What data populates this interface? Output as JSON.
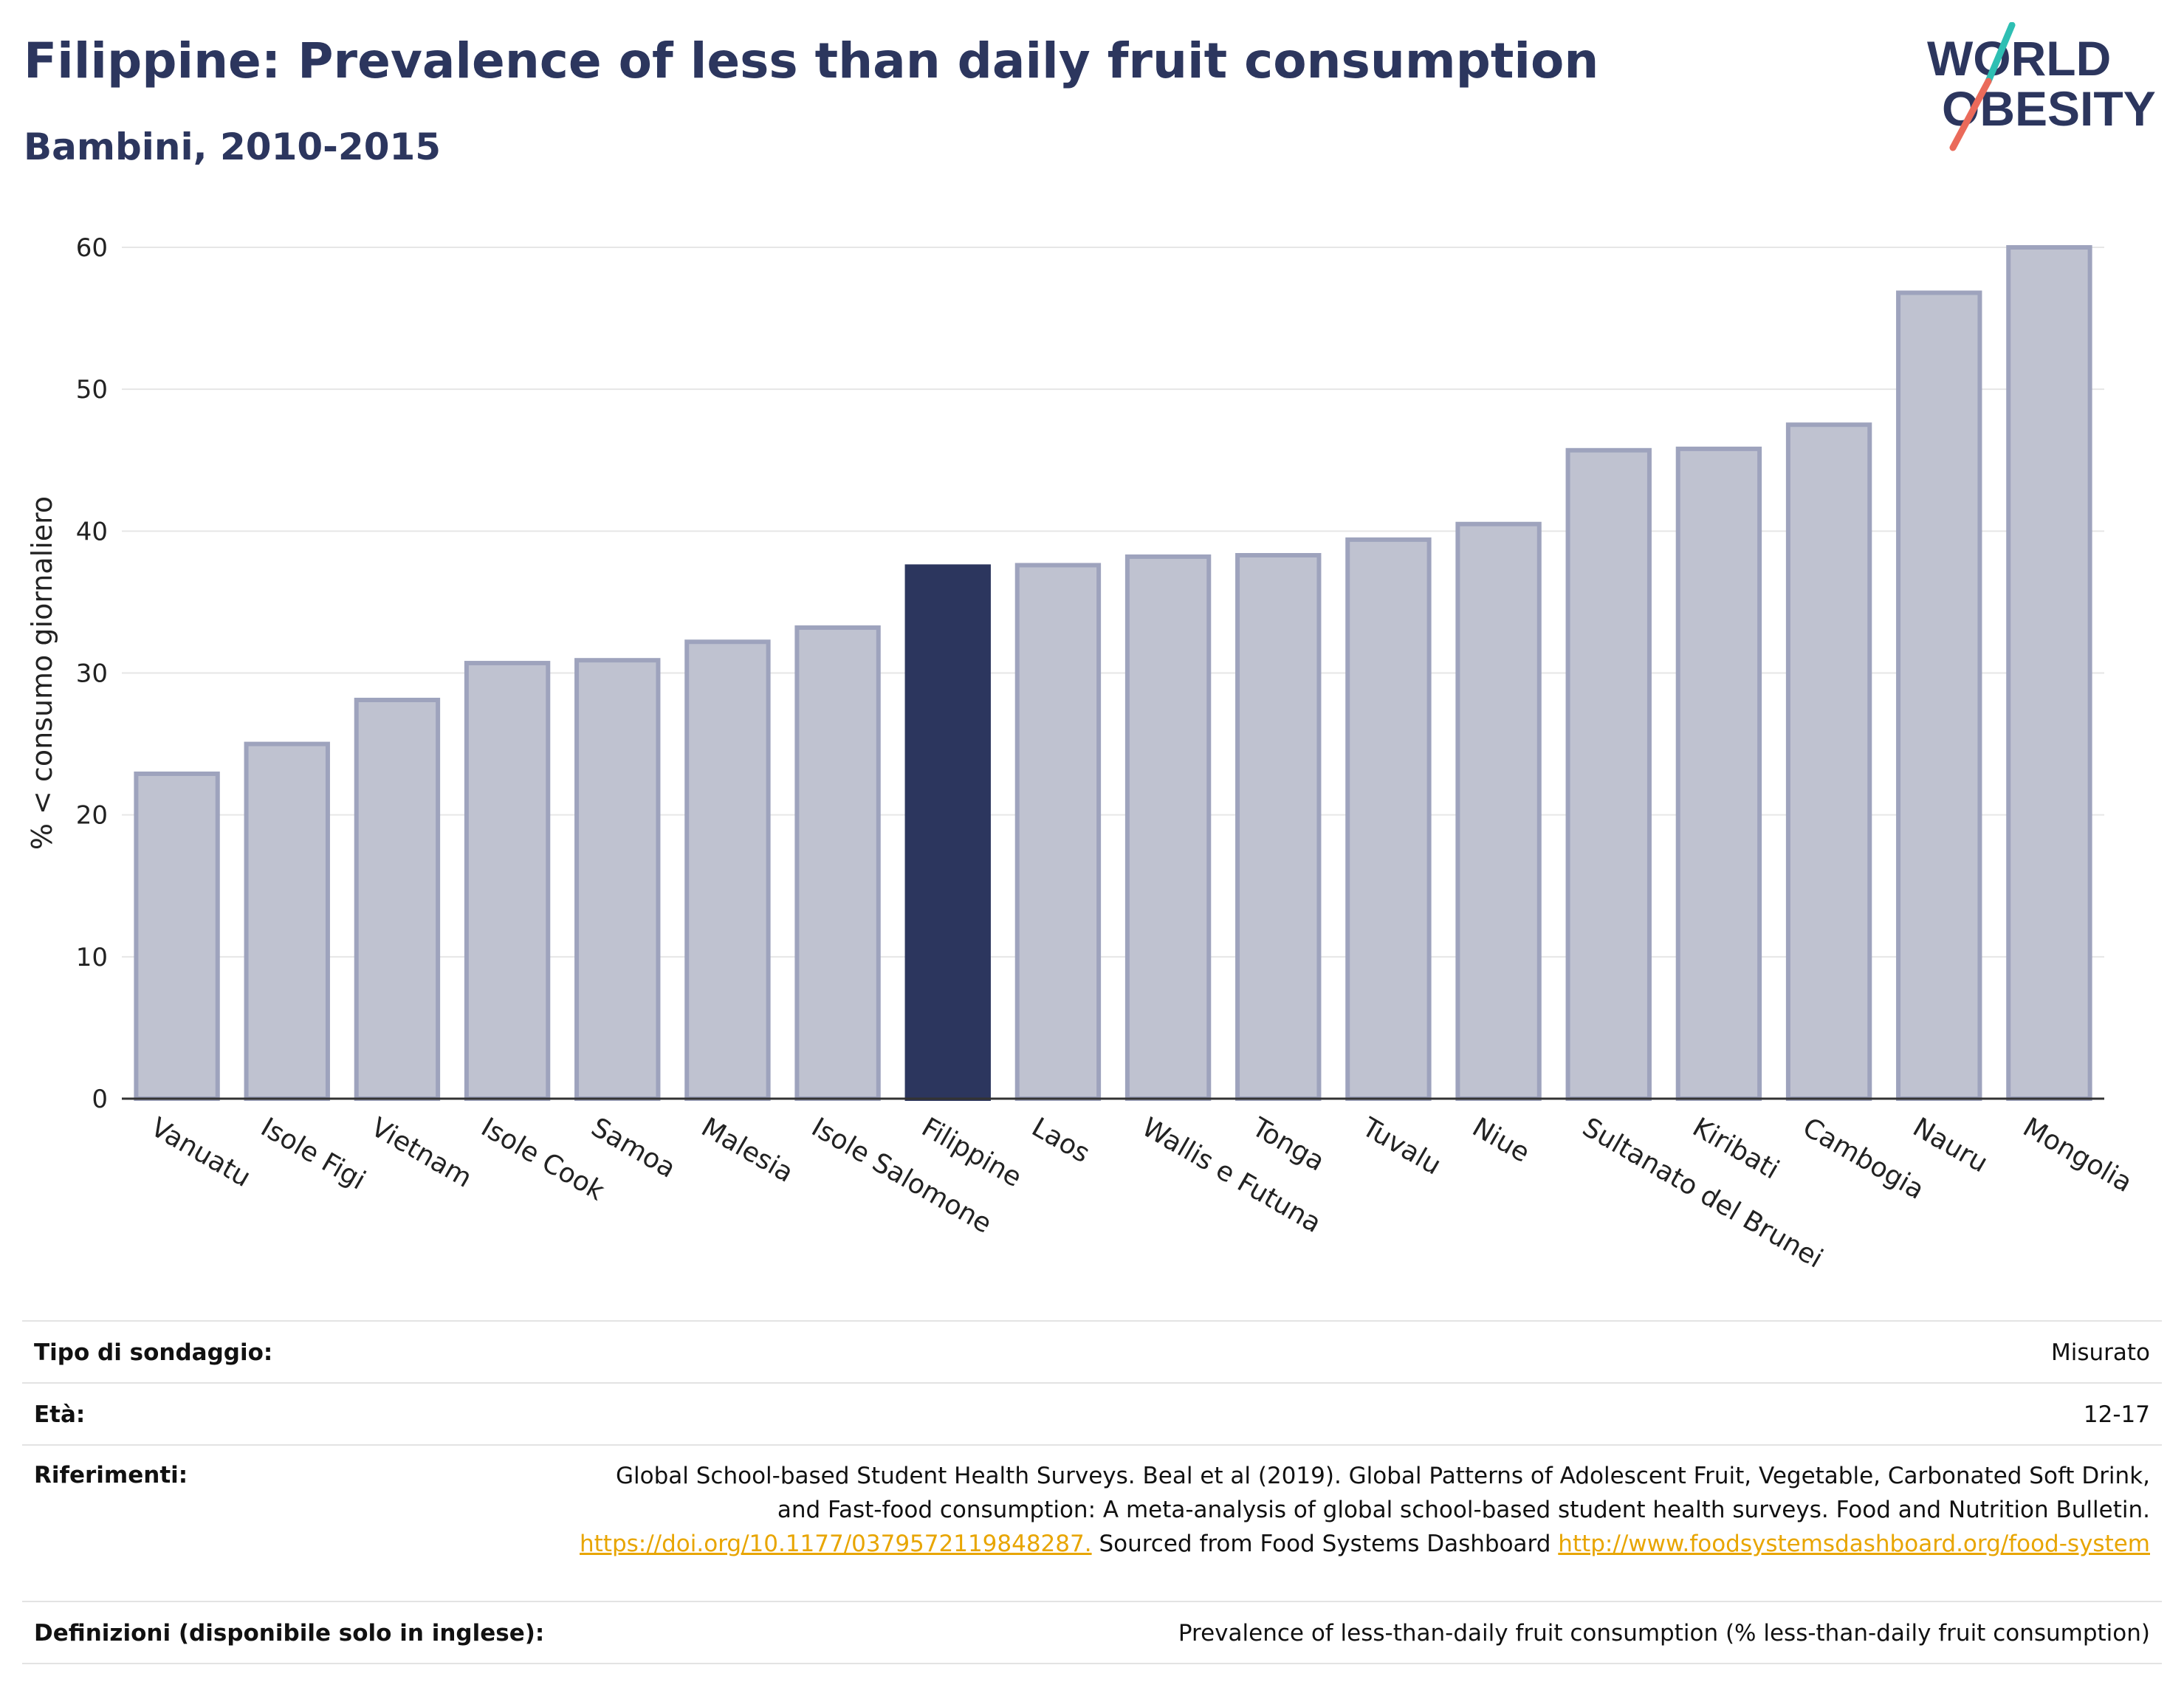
{
  "header": {
    "title": "Filippine: Prevalence of less than daily fruit consumption",
    "subtitle": "Bambini, 2010-2015"
  },
  "logo": {
    "line1": "WORLD",
    "line2": "OBESITY",
    "colors": {
      "text": "#2c365e",
      "slash_top": "#2ebfb3",
      "slash_bottom": "#ea6a5a"
    }
  },
  "chart_data": {
    "type": "bar",
    "title": "",
    "xlabel": "",
    "ylabel": "% < consumo giornaliero",
    "ylim": [
      0,
      60
    ],
    "yticks": [
      0,
      10,
      20,
      30,
      40,
      50,
      60
    ],
    "categories": [
      "Vanuatu",
      "Isole Figi",
      "Vietnam",
      "Isole Cook",
      "Samoa",
      "Malesia",
      "Isole Salomone",
      "Filippine",
      "Laos",
      "Wallis e Futuna",
      "Tonga",
      "Tuvalu",
      "Niue",
      "Sultanato del Brunei",
      "Kiribati",
      "Cambogia",
      "Nauru",
      "Mongolia"
    ],
    "values": [
      22.9,
      25.0,
      28.1,
      30.7,
      30.9,
      32.2,
      33.2,
      37.5,
      37.6,
      38.2,
      38.3,
      39.4,
      40.5,
      45.7,
      45.8,
      47.5,
      56.8,
      60.0
    ],
    "highlight": "Filippine",
    "grid": true,
    "colors": {
      "bar": "#bfc2d0",
      "bar_edge": "#9ea3bd",
      "highlight": "#2c365e",
      "grid": "#e6e6e6",
      "axis": "#333333"
    }
  },
  "meta": {
    "survey_label": "Tipo di sondaggio:",
    "survey_value": "Misurato",
    "age_label": "Età:",
    "age_value": "12-17",
    "ref_label": "Riferimenti:",
    "ref_text": "Global School-based Student Health Surveys. Beal et al (2019). Global Patterns of Adolescent Fruit, Vegetable, Carbonated Soft Drink, and Fast-food consumption: A meta-analysis of global school-based student health surveys. Food and Nutrition Bulletin.",
    "ref_link1": "https://doi.org/10.1177/0379572119848287.",
    "ref_mid": "Sourced from Food Systems Dashboard",
    "ref_link2": "http://www.foodsystemsdashboard.org/food-system",
    "def_label": "Definizioni (disponibile solo in inglese):",
    "def_value": "Prevalence of less-than-daily fruit consumption (% less-than-daily fruit consumption)"
  }
}
